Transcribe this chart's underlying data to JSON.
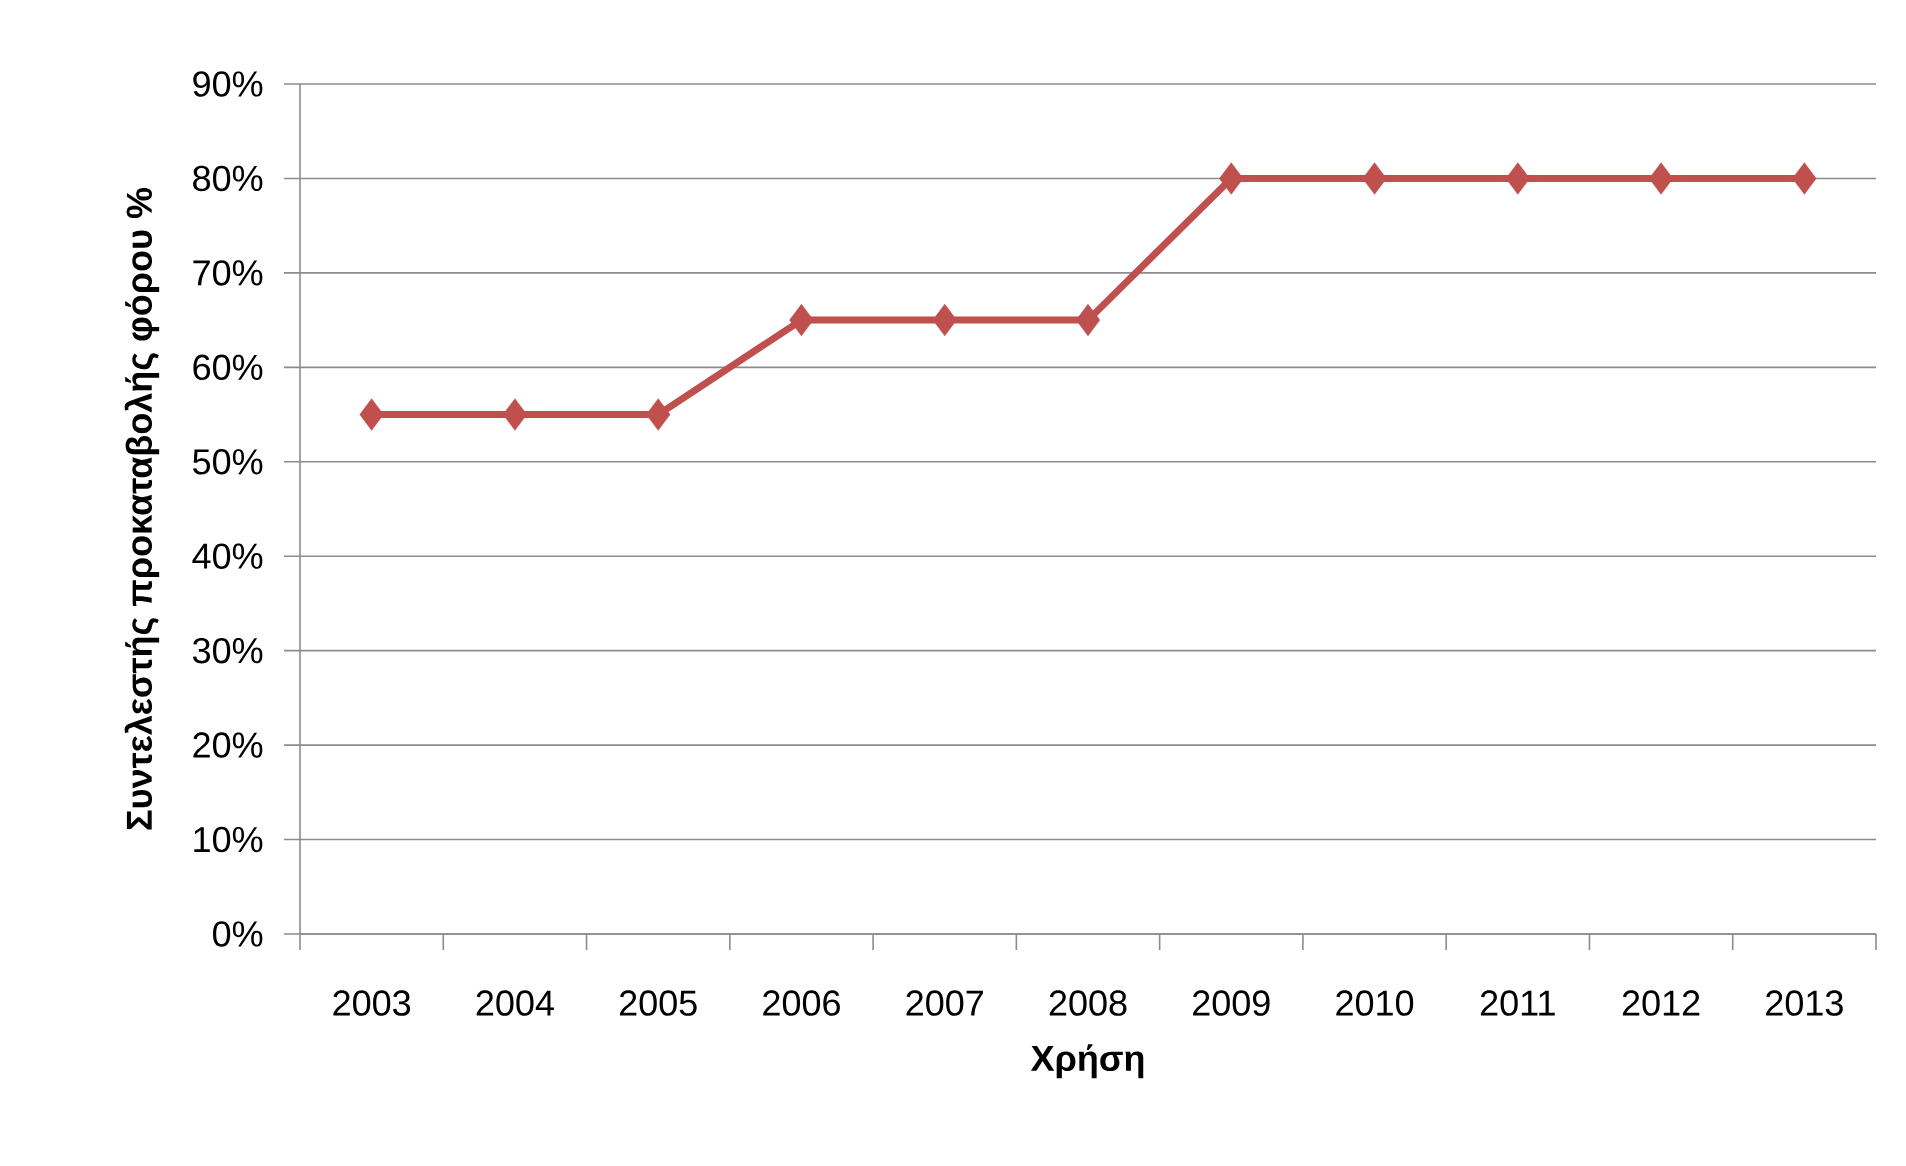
{
  "chart_data": {
    "type": "line",
    "xlabel": "Χρήση",
    "ylabel": "Συντελεστής προκαταβολής φόρου %",
    "categories": [
      "2003",
      "2004",
      "2005",
      "2006",
      "2007",
      "2008",
      "2009",
      "2010",
      "2011",
      "2012",
      "2013"
    ],
    "series": [
      {
        "color": "#c0504d",
        "values": [
          55,
          55,
          55,
          65,
          65,
          65,
          80,
          80,
          80,
          80,
          80
        ]
      }
    ],
    "ylim": [
      0,
      90
    ],
    "yticks": [
      {
        "value": 0,
        "label": "0%"
      },
      {
        "value": 10,
        "label": "10%"
      },
      {
        "value": 20,
        "label": "20%"
      },
      {
        "value": 30,
        "label": "30%"
      },
      {
        "value": 40,
        "label": "40%"
      },
      {
        "value": 50,
        "label": "50%"
      },
      {
        "value": 60,
        "label": "60%"
      },
      {
        "value": 70,
        "label": "70%"
      },
      {
        "value": 80,
        "label": "80%"
      },
      {
        "value": 90,
        "label": "90%"
      }
    ],
    "grid": "y",
    "marker": "diamond",
    "line_style": "solid"
  }
}
